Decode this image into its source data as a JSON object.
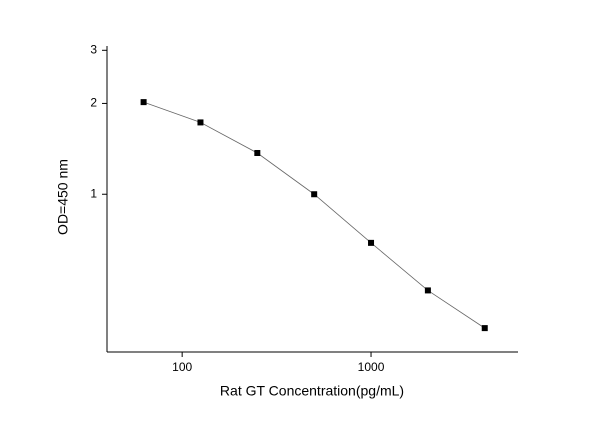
{
  "chart_data": {
    "type": "line",
    "xlabel": "Rat GT  Concentration(pg/mL)",
    "ylabel": "OD=450 nm",
    "x": [
      62.5,
      125,
      250,
      500,
      1000,
      2000,
      4000
    ],
    "series": [
      {
        "color": "#000000",
        "values": [
          2.02,
          1.73,
          1.37,
          1.0,
          0.69,
          0.48,
          0.36
        ]
      }
    ],
    "xscale": "log",
    "yscale": "log",
    "xlim": [
      40,
      6000
    ],
    "ylim": [
      0.3,
      3.1
    ],
    "xticks": [
      100,
      1000
    ],
    "yticks": [
      1,
      2,
      3
    ]
  }
}
